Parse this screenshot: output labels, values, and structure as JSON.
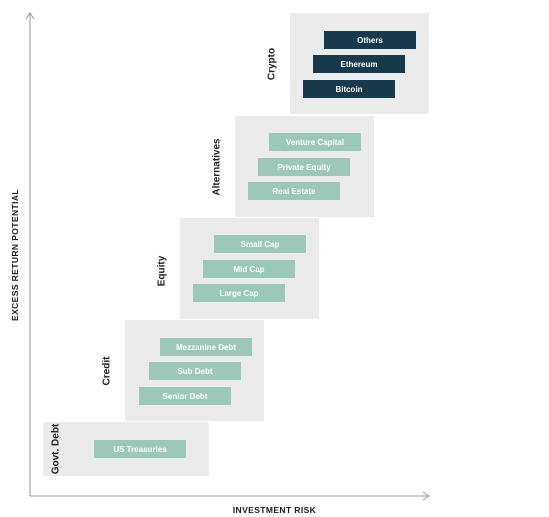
{
  "axes": {
    "x_label": "INVESTMENT RISK",
    "y_label": "EXCESS RETURN POTENTIAL"
  },
  "colors": {
    "light_bar": "#9bc8b8",
    "dark_bar": "#163a4c",
    "group_background": "#ebebeb",
    "axis": "#9a9a9a"
  },
  "groups": [
    {
      "name": "Govt. Debt",
      "items": [
        "US Treasuries"
      ]
    },
    {
      "name": "Credit",
      "items": [
        "Mezzanine Debt",
        "Sub Debt",
        "Senior Debt"
      ]
    },
    {
      "name": "Equity",
      "items": [
        "Small Cap",
        "Mid Cap",
        "Large Cap"
      ]
    },
    {
      "name": "Alternatives",
      "items": [
        "Venture Capital",
        "Private Equity",
        "Real Estate"
      ]
    },
    {
      "name": "Crypto",
      "items": [
        "Others",
        "Ethereum",
        "Bitcoin"
      ]
    }
  ]
}
